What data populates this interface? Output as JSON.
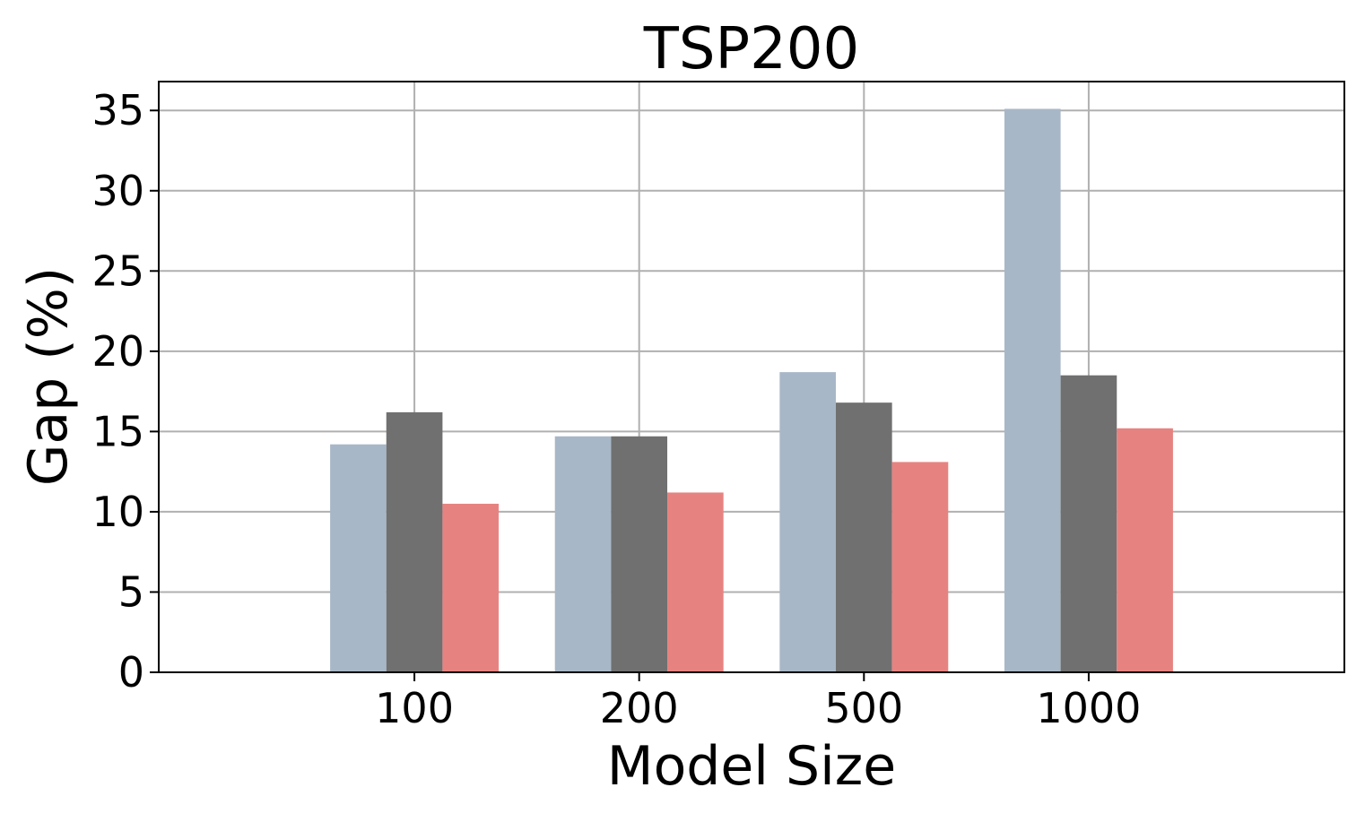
{
  "chart_data": {
    "type": "bar",
    "title": "TSP200",
    "xlabel": "Model Size",
    "ylabel": "Gap (%)",
    "categories": [
      "100",
      "200",
      "500",
      "1000"
    ],
    "series": [
      {
        "color": "#a8b7c7",
        "values": [
          14.2,
          14.7,
          18.7,
          35.1
        ]
      },
      {
        "color": "#707070",
        "values": [
          16.2,
          14.7,
          16.8,
          18.5
        ]
      },
      {
        "color": "#e68381",
        "values": [
          10.5,
          11.2,
          13.1,
          15.2
        ]
      }
    ],
    "ylim": [
      0,
      36.8
    ],
    "yticks": [
      0,
      5,
      10,
      15,
      20,
      25,
      30,
      35
    ],
    "grid": true,
    "legend": "none"
  }
}
